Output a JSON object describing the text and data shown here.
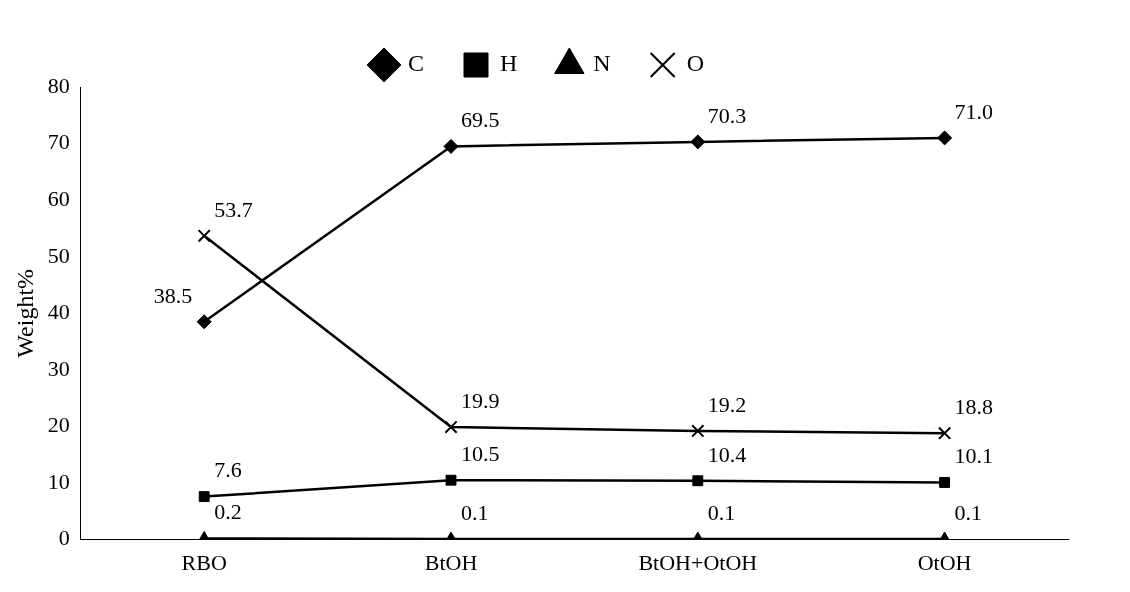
{
  "chart_data": {
    "type": "line",
    "ylabel": "Weight%",
    "categories": [
      "RBO",
      "BtOH",
      "BtOH+OtOH",
      "OtOH"
    ],
    "series": [
      {
        "name": "C",
        "color": "#000000",
        "marker": "diamond",
        "values": [
          38.5,
          69.5,
          70.3,
          71.0
        ],
        "value_labels": [
          "38.5",
          "69.5",
          "70.3",
          "71.0"
        ]
      },
      {
        "name": "H",
        "color": "#000000",
        "marker": "square",
        "values": [
          7.6,
          10.5,
          10.4,
          10.1
        ],
        "value_labels": [
          "7.6",
          "10.5",
          "10.4",
          "10.1"
        ]
      },
      {
        "name": "N",
        "color": "#000000",
        "marker": "triangle",
        "values": [
          0.2,
          0.1,
          0.1,
          0.1
        ],
        "value_labels": [
          "0.2",
          "0.1",
          "0.1",
          "0.1"
        ]
      },
      {
        "name": "O",
        "color": "#000000",
        "marker": "cross",
        "values": [
          53.7,
          19.9,
          19.2,
          18.8
        ],
        "value_labels": [
          "53.7",
          "19.9",
          "19.2",
          "18.8"
        ]
      }
    ],
    "ylim": [
      0,
      80
    ],
    "yticks": [
      0,
      10,
      20,
      30,
      40,
      50,
      60,
      70,
      80
    ],
    "grid": false,
    "legend": "top"
  }
}
